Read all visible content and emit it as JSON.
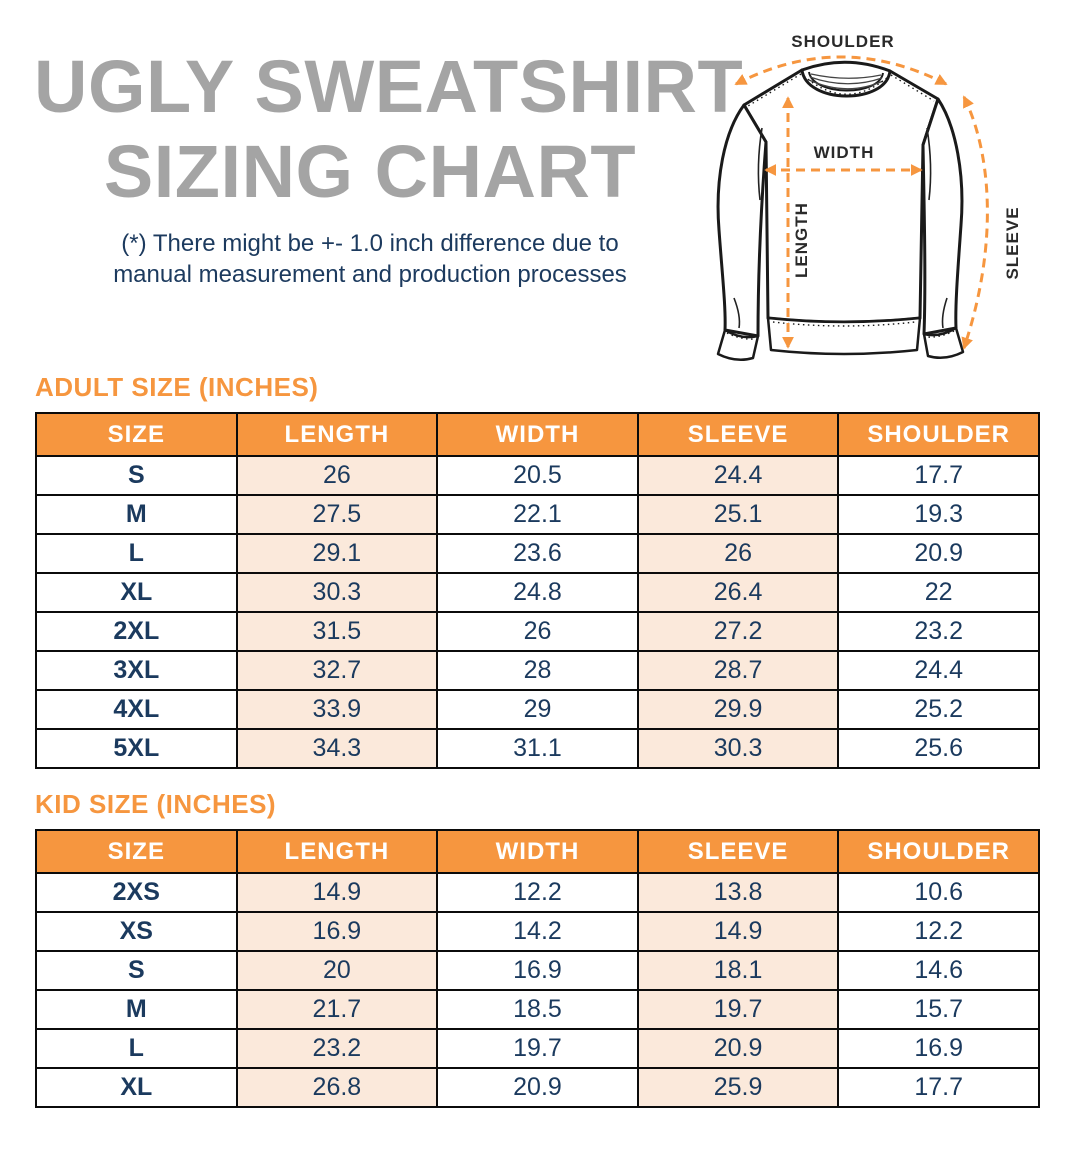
{
  "title": {
    "line1": "UGLY SWEATSHIRT",
    "line2": "SIZING CHART"
  },
  "disclaimer": {
    "line1": "(*) There might be +- 1.0 inch difference due to",
    "line2": "manual measurement and production processes"
  },
  "diagram": {
    "labels": {
      "shoulder": "SHOULDER",
      "width": "WIDTH",
      "length": "LENGTH",
      "sleeve": "SLEEVE"
    }
  },
  "adult_table": {
    "heading": "ADULT SIZE (INCHES)",
    "columns": [
      "SIZE",
      "LENGTH",
      "WIDTH",
      "SLEEVE",
      "SHOULDER"
    ],
    "rows": [
      [
        "S",
        "26",
        "20.5",
        "24.4",
        "17.7"
      ],
      [
        "M",
        "27.5",
        "22.1",
        "25.1",
        "19.3"
      ],
      [
        "L",
        "29.1",
        "23.6",
        "26",
        "20.9"
      ],
      [
        "XL",
        "30.3",
        "24.8",
        "26.4",
        "22"
      ],
      [
        "2XL",
        "31.5",
        "26",
        "27.2",
        "23.2"
      ],
      [
        "3XL",
        "32.7",
        "28",
        "28.7",
        "24.4"
      ],
      [
        "4XL",
        "33.9",
        "29",
        "29.9",
        "25.2"
      ],
      [
        "5XL",
        "34.3",
        "31.1",
        "30.3",
        "25.6"
      ]
    ]
  },
  "kid_table": {
    "heading": "KID SIZE (INCHES)",
    "columns": [
      "SIZE",
      "LENGTH",
      "WIDTH",
      "SLEEVE",
      "SHOULDER"
    ],
    "rows": [
      [
        "2XS",
        "14.9",
        "12.2",
        "13.8",
        "10.6"
      ],
      [
        "XS",
        "16.9",
        "14.2",
        "14.9",
        "12.2"
      ],
      [
        "S",
        "20",
        "16.9",
        "18.1",
        "14.6"
      ],
      [
        "M",
        "21.7",
        "18.5",
        "19.7",
        "15.7"
      ],
      [
        "L",
        "23.2",
        "19.7",
        "20.9",
        "16.9"
      ],
      [
        "XL",
        "26.8",
        "20.9",
        "25.9",
        "17.7"
      ]
    ]
  },
  "colors": {
    "accent_orange": "#F6963F",
    "peach_cell": "#FBE9DB",
    "navy_text": "#1B3A5E",
    "title_gray": "#A4A4A4",
    "table_border": "#0B0B0B"
  }
}
